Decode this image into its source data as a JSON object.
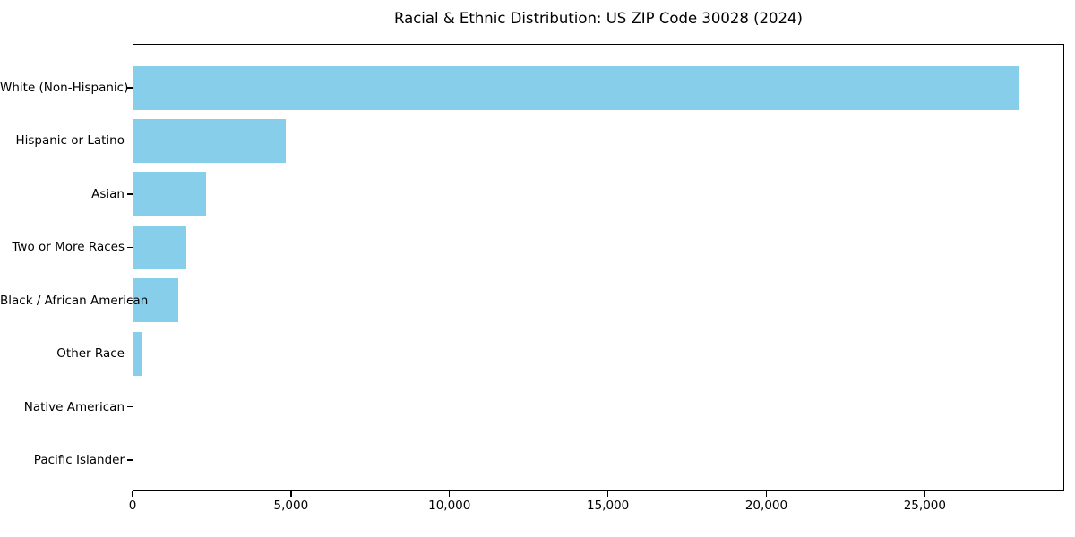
{
  "title": "Racial & Ethnic Distribution: US ZIP Code 30028 (2024)",
  "chart_data": {
    "type": "bar",
    "orientation": "horizontal",
    "title": "Racial & Ethnic Distribution: US ZIP Code 30028 (2024)",
    "xlabel": "",
    "ylabel": "",
    "categories": [
      "White (Non-Hispanic)",
      "Hispanic or Latino",
      "Asian",
      "Two or More Races",
      "Black / African American",
      "Other Race",
      "Native American",
      "Pacific Islander"
    ],
    "values": [
      28000,
      4840,
      2320,
      1690,
      1440,
      310,
      0,
      0
    ],
    "bar_color": "#87CEEB",
    "axis_color": "#000000",
    "text_color": "#000000",
    "background_color": "#ffffff",
    "xlim": [
      0,
      29400
    ],
    "xticks": [
      0,
      5000,
      10000,
      15000,
      20000,
      25000
    ],
    "xtick_labels": [
      "0",
      "5,000",
      "10,000",
      "15,000",
      "20,000",
      "25,000"
    ],
    "grid": false,
    "legend_position": "none"
  }
}
